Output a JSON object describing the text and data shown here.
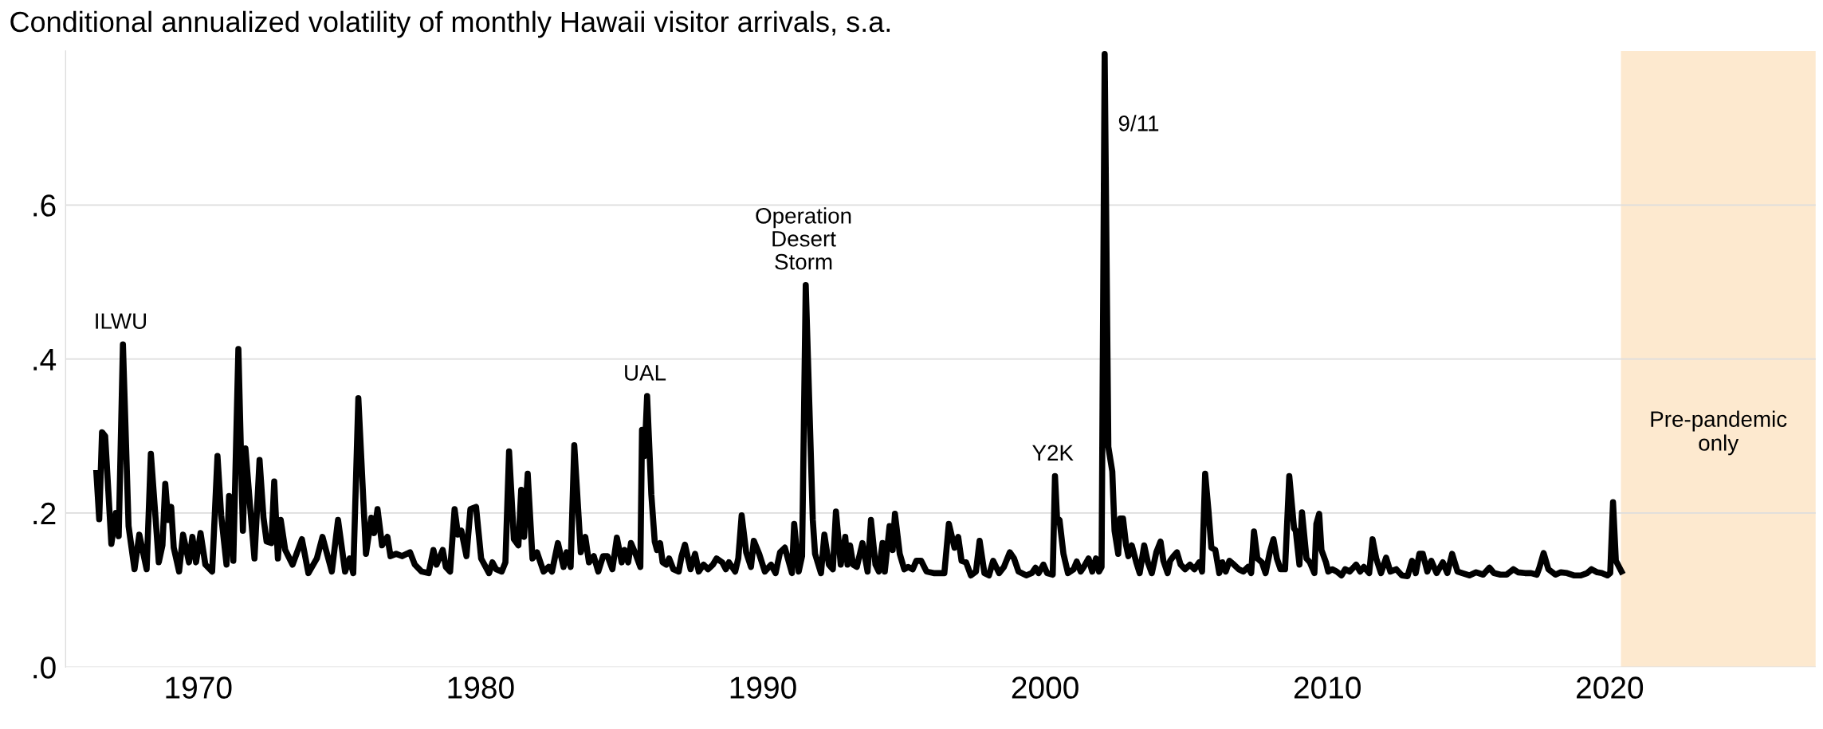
{
  "chart_data": {
    "type": "line",
    "title": "Conditional annualized volatility of monthly Hawaii visitor arrivals, s.a.",
    "x": [
      1966.39,
      1966.49,
      1966.59,
      1966.7,
      1966.82,
      1966.92,
      1967.08,
      1967.18,
      1967.33,
      1967.53,
      1967.74,
      1967.91,
      1968.17,
      1968.32,
      1968.6,
      1968.73,
      1968.83,
      1968.93,
      1969.04,
      1969.13,
      1969.32,
      1969.46,
      1969.67,
      1969.79,
      1969.92,
      1970.08,
      1970.25,
      1970.49,
      1970.68,
      1970.81,
      1971.0,
      1971.09,
      1971.24,
      1971.42,
      1971.58,
      1971.67,
      1971.85,
      1971.99,
      1972.17,
      1972.31,
      1972.42,
      1972.59,
      1972.69,
      1972.82,
      1972.92,
      1973.08,
      1973.34,
      1973.67,
      1973.9,
      1974.2,
      1974.4,
      1974.73,
      1974.95,
      1975.2,
      1975.36,
      1975.49,
      1975.67,
      1975.94,
      1976.13,
      1976.23,
      1976.35,
      1976.51,
      1976.7,
      1976.81,
      1977.01,
      1977.22,
      1977.5,
      1977.67,
      1977.91,
      1978.16,
      1978.33,
      1978.44,
      1978.66,
      1978.77,
      1978.92,
      1979.08,
      1979.2,
      1979.32,
      1979.5,
      1979.64,
      1979.84,
      1980.02,
      1980.3,
      1980.42,
      1980.55,
      1980.75,
      1980.88,
      1981.01,
      1981.18,
      1981.34,
      1981.44,
      1981.54,
      1981.67,
      1981.84,
      1982.0,
      1982.23,
      1982.41,
      1982.53,
      1982.74,
      1982.94,
      1983.05,
      1983.19,
      1983.32,
      1983.55,
      1983.71,
      1983.84,
      1984.01,
      1984.17,
      1984.34,
      1984.5,
      1984.67,
      1984.83,
      1985.0,
      1985.1,
      1985.23,
      1985.33,
      1985.49,
      1985.66,
      1985.72,
      1985.81,
      1985.9,
      1986.05,
      1986.17,
      1986.25,
      1986.36,
      1986.45,
      1986.58,
      1986.68,
      1986.83,
      1987.02,
      1987.12,
      1987.24,
      1987.44,
      1987.6,
      1987.73,
      1987.9,
      1988.06,
      1988.23,
      1988.36,
      1988.56,
      1988.69,
      1988.8,
      1989.02,
      1989.13,
      1989.25,
      1989.41,
      1989.58,
      1989.68,
      1989.87,
      1990.07,
      1990.29,
      1990.45,
      1990.61,
      1990.78,
      1991.03,
      1991.11,
      1991.27,
      1991.39,
      1991.52,
      1991.77,
      1991.85,
      1992.06,
      1992.18,
      1992.34,
      1992.48,
      1992.59,
      1992.76,
      1992.92,
      1993.0,
      1993.09,
      1993.2,
      1993.33,
      1993.53,
      1993.71,
      1993.83,
      1993.99,
      1994.11,
      1994.24,
      1994.32,
      1994.49,
      1994.6,
      1994.68,
      1994.85,
      1995.01,
      1995.15,
      1995.31,
      1995.44,
      1995.61,
      1995.8,
      1996.05,
      1996.3,
      1996.43,
      1996.59,
      1996.79,
      1996.92,
      1997.04,
      1997.2,
      1997.37,
      1997.55,
      1997.68,
      1997.85,
      1998.01,
      1998.16,
      1998.37,
      1998.54,
      1998.75,
      1998.9,
      1999.06,
      1999.33,
      1999.53,
      1999.66,
      1999.77,
      1999.94,
      2000.07,
      2000.27,
      2000.35,
      2000.43,
      2000.51,
      2000.65,
      2000.81,
      2001.01,
      2001.12,
      2001.26,
      2001.37,
      2001.54,
      2001.67,
      2001.8,
      2001.91,
      2002.0,
      2002.11,
      2002.24,
      2002.38,
      2002.46,
      2002.59,
      2002.66,
      2002.76,
      2002.87,
      2002.95,
      2003.07,
      2003.23,
      2003.35,
      2003.51,
      2003.64,
      2003.78,
      2003.94,
      2004.09,
      2004.19,
      2004.34,
      2004.43,
      2004.55,
      2004.67,
      2004.8,
      2004.96,
      2005.13,
      2005.29,
      2005.46,
      2005.56,
      2005.67,
      2005.79,
      2005.89,
      2006.03,
      2006.17,
      2006.28,
      2006.4,
      2006.53,
      2006.69,
      2006.86,
      2007.02,
      2007.19,
      2007.3,
      2007.4,
      2007.52,
      2007.68,
      2007.81,
      2007.96,
      2008.09,
      2008.21,
      2008.34,
      2008.5,
      2008.65,
      2008.82,
      2008.88,
      2009.01,
      2009.1,
      2009.26,
      2009.38,
      2009.54,
      2009.61,
      2009.71,
      2009.79,
      2009.95,
      2010.03,
      2010.17,
      2010.33,
      2010.5,
      2010.63,
      2010.79,
      2011.02,
      2011.16,
      2011.29,
      2011.48,
      2011.6,
      2011.73,
      2011.9,
      2012.08,
      2012.23,
      2012.44,
      2012.64,
      2012.84,
      2013.0,
      2013.13,
      2013.26,
      2013.38,
      2013.54,
      2013.68,
      2013.87,
      2014.09,
      2014.25,
      2014.42,
      2014.61,
      2014.78,
      2015.03,
      2015.27,
      2015.52,
      2015.74,
      2015.9,
      2016.13,
      2016.35,
      2016.59,
      2016.76,
      2017.0,
      2017.22,
      2017.42,
      2017.51,
      2017.66,
      2017.83,
      2018.08,
      2018.27,
      2018.49,
      2018.73,
      2018.98,
      2019.2,
      2019.36,
      2019.56,
      2019.72,
      2019.92,
      2020.02,
      2020.12,
      2020.22,
      2020.42
    ],
    "series": [
      {
        "color": "#000000",
        "values": [
          0.252,
          0.192,
          0.305,
          0.3,
          0.224,
          0.16,
          0.2,
          0.17,
          0.419,
          0.183,
          0.127,
          0.172,
          0.127,
          0.277,
          0.136,
          0.158,
          0.238,
          0.191,
          0.208,
          0.155,
          0.124,
          0.172,
          0.136,
          0.169,
          0.136,
          0.174,
          0.133,
          0.124,
          0.274,
          0.197,
          0.133,
          0.222,
          0.138,
          0.413,
          0.177,
          0.284,
          0.202,
          0.141,
          0.269,
          0.194,
          0.163,
          0.161,
          0.241,
          0.141,
          0.191,
          0.152,
          0.133,
          0.166,
          0.122,
          0.141,
          0.169,
          0.124,
          0.191,
          0.124,
          0.141,
          0.122,
          0.349,
          0.147,
          0.194,
          0.174,
          0.205,
          0.158,
          0.169,
          0.144,
          0.147,
          0.144,
          0.149,
          0.133,
          0.124,
          0.122,
          0.152,
          0.133,
          0.152,
          0.13,
          0.124,
          0.205,
          0.172,
          0.177,
          0.144,
          0.205,
          0.208,
          0.141,
          0.122,
          0.136,
          0.127,
          0.124,
          0.136,
          0.28,
          0.166,
          0.158,
          0.23,
          0.169,
          0.251,
          0.141,
          0.149,
          0.124,
          0.13,
          0.124,
          0.161,
          0.13,
          0.149,
          0.13,
          0.288,
          0.149,
          0.169,
          0.136,
          0.144,
          0.124,
          0.144,
          0.144,
          0.127,
          0.168,
          0.136,
          0.152,
          0.136,
          0.161,
          0.147,
          0.13,
          0.308,
          0.274,
          0.352,
          0.224,
          0.163,
          0.152,
          0.161,
          0.136,
          0.133,
          0.141,
          0.127,
          0.124,
          0.144,
          0.159,
          0.127,
          0.147,
          0.124,
          0.133,
          0.127,
          0.133,
          0.141,
          0.136,
          0.127,
          0.136,
          0.124,
          0.141,
          0.197,
          0.149,
          0.13,
          0.164,
          0.147,
          0.124,
          0.133,
          0.122,
          0.149,
          0.155,
          0.122,
          0.186,
          0.124,
          0.144,
          0.496,
          0.191,
          0.147,
          0.122,
          0.172,
          0.133,
          0.127,
          0.202,
          0.133,
          0.169,
          0.133,
          0.158,
          0.133,
          0.13,
          0.161,
          0.124,
          0.191,
          0.133,
          0.124,
          0.161,
          0.124,
          0.183,
          0.152,
          0.199,
          0.147,
          0.127,
          0.13,
          0.127,
          0.138,
          0.138,
          0.124,
          0.122,
          0.122,
          0.122,
          0.186,
          0.155,
          0.169,
          0.138,
          0.136,
          0.119,
          0.124,
          0.164,
          0.122,
          0.119,
          0.138,
          0.122,
          0.13,
          0.149,
          0.141,
          0.124,
          0.119,
          0.122,
          0.129,
          0.122,
          0.133,
          0.122,
          0.12,
          0.248,
          0.188,
          0.191,
          0.147,
          0.122,
          0.127,
          0.137,
          0.124,
          0.13,
          0.141,
          0.124,
          0.141,
          0.124,
          0.13,
          0.796,
          0.286,
          0.254,
          0.177,
          0.147,
          0.193,
          0.193,
          0.158,
          0.144,
          0.158,
          0.136,
          0.122,
          0.158,
          0.136,
          0.122,
          0.149,
          0.163,
          0.138,
          0.122,
          0.138,
          0.144,
          0.149,
          0.133,
          0.127,
          0.133,
          0.127,
          0.136,
          0.124,
          0.251,
          0.202,
          0.155,
          0.152,
          0.122,
          0.136,
          0.124,
          0.138,
          0.133,
          0.127,
          0.124,
          0.13,
          0.122,
          0.176,
          0.141,
          0.136,
          0.122,
          0.149,
          0.166,
          0.141,
          0.127,
          0.127,
          0.248,
          0.18,
          0.177,
          0.133,
          0.201,
          0.141,
          0.136,
          0.122,
          0.186,
          0.199,
          0.152,
          0.136,
          0.124,
          0.127,
          0.124,
          0.119,
          0.127,
          0.124,
          0.133,
          0.124,
          0.13,
          0.122,
          0.166,
          0.141,
          0.122,
          0.142,
          0.124,
          0.127,
          0.119,
          0.118,
          0.138,
          0.122,
          0.147,
          0.147,
          0.124,
          0.138,
          0.122,
          0.136,
          0.122,
          0.147,
          0.124,
          0.122,
          0.119,
          0.123,
          0.12,
          0.129,
          0.122,
          0.12,
          0.12,
          0.127,
          0.123,
          0.122,
          0.122,
          0.12,
          0.129,
          0.148,
          0.127,
          0.12,
          0.123,
          0.122,
          0.119,
          0.119,
          0.122,
          0.127,
          0.123,
          0.122,
          0.119,
          0.122,
          0.214,
          0.138,
          0.124
        ]
      }
    ],
    "xlim": [
      1965.3,
      2027.3
    ],
    "xticks": [
      1970,
      1980,
      1990,
      2000,
      2010,
      2020
    ],
    "ylim": [
      0,
      0.8
    ],
    "yticks": [
      {
        "value": 0,
        "label": ".0"
      },
      {
        "value": 0.2,
        "label": ".2"
      },
      {
        "value": 0.4,
        "label": ".4"
      },
      {
        "value": 0.6,
        "label": ".6"
      }
    ],
    "grid": "y",
    "line_style": "solid",
    "marker": "none",
    "bands": [
      {
        "axis": "x",
        "from": 2020.4,
        "to": 2027.3,
        "label": "Pre-pandemic\nonly",
        "color": "#fde9cf"
      }
    ],
    "annotations": [
      {
        "text": "ILWU",
        "x": 1967.33,
        "y": 0.419
      },
      {
        "text": "UAL",
        "x": 1985.9,
        "y": 0.352
      },
      {
        "text": "Operation\nDesert\nStorm",
        "x": 1991.52,
        "y": 0.496
      },
      {
        "text": "Y2K",
        "x": 2000.35,
        "y": 0.248
      },
      {
        "text": "9/11",
        "x": 2002.11,
        "y": 0.796
      }
    ]
  }
}
